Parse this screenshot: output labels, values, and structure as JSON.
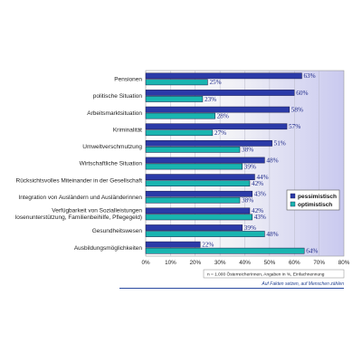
{
  "chart_data": {
    "type": "bar",
    "orientation": "horizontal",
    "categories": [
      "Pensionen",
      "politische Situation",
      "Arbeitsmarktsituation",
      "Kriminalität",
      "Umweltverschmutzung",
      "Wirtschaftliche Situation",
      "Rücksichtsvolles Miteinander in der Gesellschaft",
      "Integration von Ausländern und Ausländerinnen",
      "Verfügbarkeit von Sozialleistungen (...losenunterstützung, Familienbeihilfe, Pflegegeld)",
      "Gesundheitswesen",
      "Ausbildungsmöglichkeiten"
    ],
    "category_lines": [
      [
        "Pensionen"
      ],
      [
        "politische Situation"
      ],
      [
        "Arbeitsmarktsituation"
      ],
      [
        "Kriminalität"
      ],
      [
        "Umweltverschmutzung"
      ],
      [
        "Wirtschaftliche Situation"
      ],
      [
        "Rücksichtsvolles Miteinander in der Gesellschaft"
      ],
      [
        "Integration von Ausländern und Ausländerinnen"
      ],
      [
        "Verfügbarkeit von Sozialleistungen",
        "losenunterstützung, Familienbeihilfe, Pflegegeld)"
      ],
      [
        "Gesundheitswesen"
      ],
      [
        "Ausbildungsmöglichkeiten"
      ]
    ],
    "series": [
      {
        "name": "pessimistisch",
        "color": "#2b3aa8",
        "values": [
          63,
          60,
          58,
          57,
          51,
          48,
          44,
          43,
          42,
          39,
          22
        ],
        "labels": [
          "63%",
          "60%",
          "58%",
          "57%",
          "51%",
          "48%",
          "44%",
          "43%",
          "42%",
          "39%",
          "22%"
        ]
      },
      {
        "name": "optimistisch",
        "color": "#19b5b0",
        "values": [
          25,
          23,
          28,
          27,
          38,
          39,
          42,
          38,
          43,
          48,
          64
        ],
        "labels": [
          "25%",
          "23%",
          "28%",
          "27%",
          "38%",
          "39%",
          "42%",
          "38%",
          "43%",
          "48%",
          "64%"
        ]
      }
    ],
    "xlim": [
      0,
      80
    ],
    "xticks": [
      "0%",
      "10%",
      "20%",
      "30%",
      "40%",
      "50%",
      "60%",
      "70%",
      "80%"
    ],
    "grid": true,
    "legend_position": "right",
    "note": "n = 1.000 ÖsterreicherInnen, Angaben in %, Einfachnennung"
  },
  "footer": "Auf Fakten setzen, auf Menschen zählen"
}
